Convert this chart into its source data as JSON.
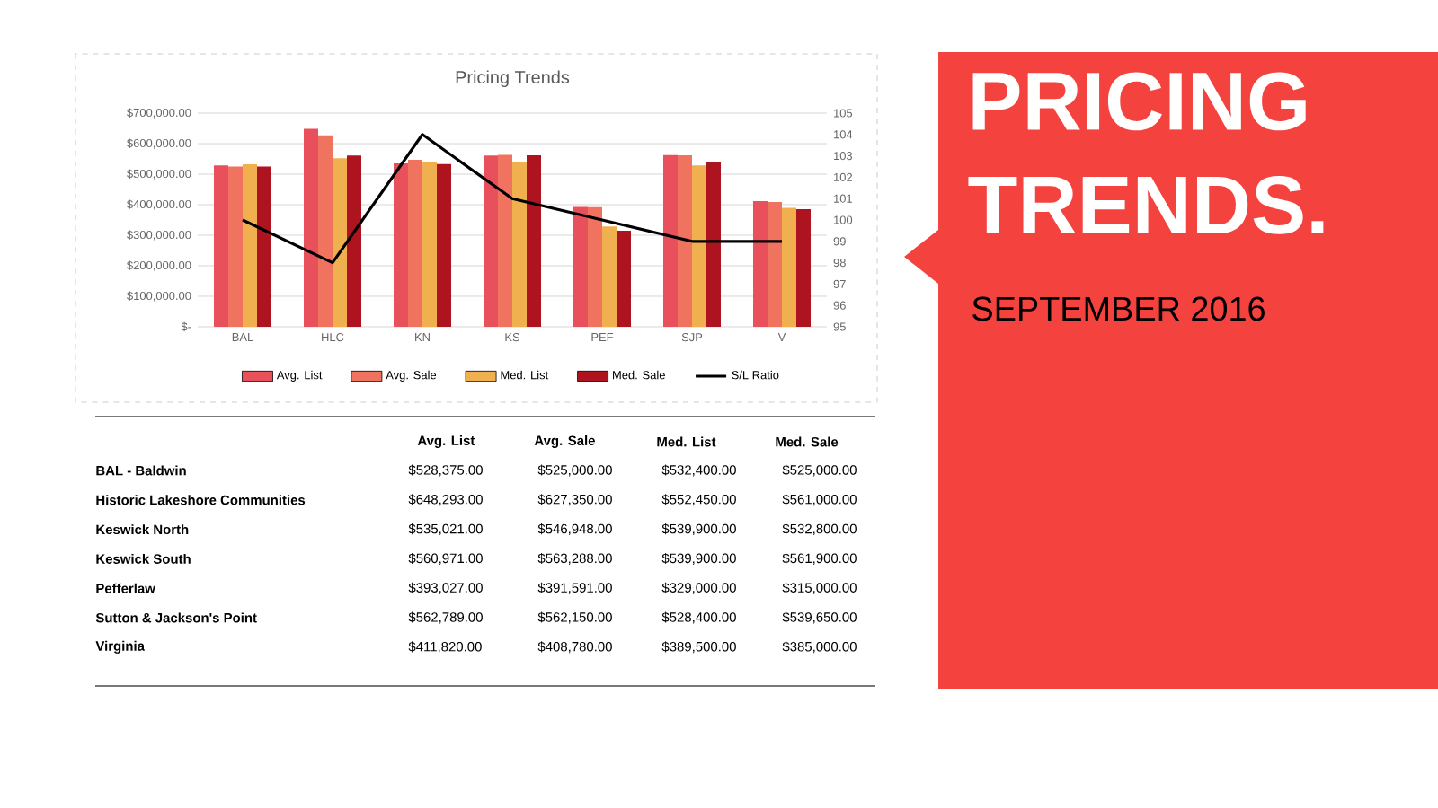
{
  "chart_data": {
    "type": "bar",
    "title": "Pricing Trends",
    "categories": [
      "BAL",
      "HLC",
      "KN",
      "KS",
      "PEF",
      "SJP",
      "V"
    ],
    "series": [
      {
        "name": "Avg. List",
        "color": "#e8505b",
        "values": [
          528375,
          648293,
          535021,
          560971,
          393027,
          562789,
          411820
        ]
      },
      {
        "name": "Avg. Sale",
        "color": "#ef735e",
        "values": [
          525000,
          627350,
          546948,
          563288,
          391591,
          562150,
          408780
        ]
      },
      {
        "name": "Med. List",
        "color": "#f0b050",
        "values": [
          532400,
          552450,
          539900,
          539900,
          329000,
          528400,
          389500
        ]
      },
      {
        "name": "Med. Sale",
        "color": "#ae1420",
        "values": [
          525000,
          561000,
          532800,
          561900,
          315000,
          539650,
          385000
        ]
      },
      {
        "name": "S/L Ratio",
        "color": "#000000",
        "type": "line",
        "axis": "y2",
        "values": [
          100,
          98,
          104,
          101,
          100,
          99,
          99
        ]
      }
    ],
    "ylim": [
      0,
      700000
    ],
    "yticks": [
      {
        "value": 0,
        "label": "$-"
      },
      {
        "value": 100000,
        "label": "$100,000.00"
      },
      {
        "value": 200000,
        "label": "$200,000.00"
      },
      {
        "value": 300000,
        "label": "$300,000.00"
      },
      {
        "value": 400000,
        "label": "$400,000.00"
      },
      {
        "value": 500000,
        "label": "$500,000.00"
      },
      {
        "value": 600000,
        "label": "$600,000.00"
      },
      {
        "value": 700000,
        "label": "$700,000.00"
      }
    ],
    "y2lim": [
      95,
      105
    ],
    "y2ticks": [
      95,
      96,
      97,
      98,
      99,
      100,
      101,
      102,
      103,
      104,
      105
    ],
    "grid": "y",
    "legend": "bottom",
    "annotations": [
      "PRICING TRENDS.",
      "SEPTEMBER 2016",
      "BAL - Baldwin",
      "$528,375.00",
      "$525,000.00",
      "$532,400.00",
      "$525,000.00",
      "Historic Lakeshore Communities",
      "$648,293.00",
      "$627,350.00",
      "$552,450.00",
      "$561,000.00",
      "Keswick North",
      "$535,021.00",
      "$546,948.00",
      "$539,900.00",
      "$532,800.00",
      "Keswick South",
      "$560,971.00",
      "$563,288.00",
      "$539,900.00",
      "$561,900.00",
      "Pefferlaw",
      "$393,027.00",
      "$391,591.00",
      "$329,000.00",
      "$315,000.00",
      "Sutton & Jackson's Point",
      "$562,789.00",
      "$562,150.00",
      "$528,400.00",
      "$539,650.00",
      "Virginia",
      "$411,820.00",
      "$408,780.00",
      "$389,500.00",
      "$385,000.00"
    ]
  }
}
